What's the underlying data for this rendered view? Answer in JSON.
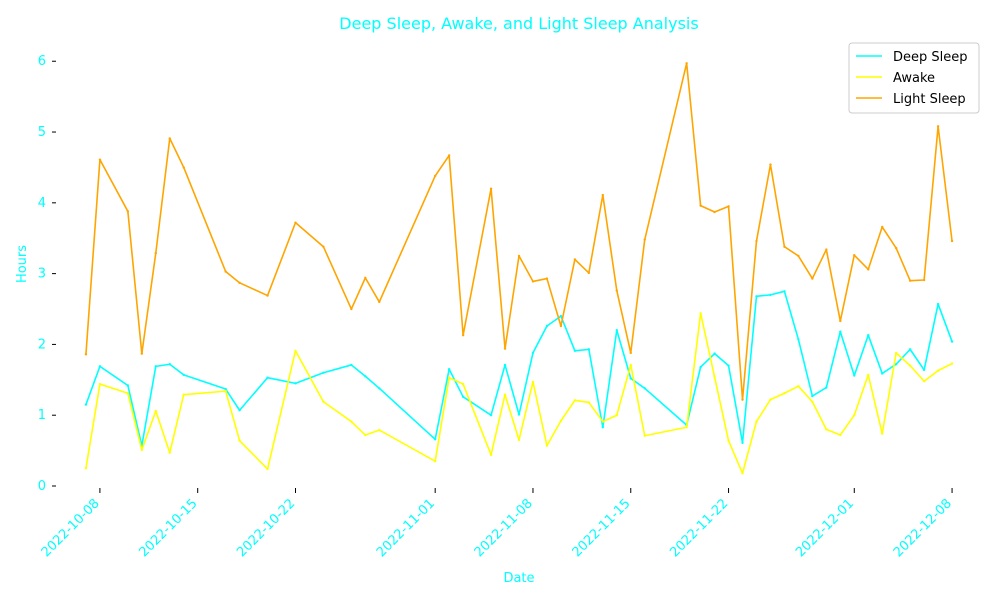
{
  "chart_data": {
    "type": "line",
    "title": "Deep Sleep, Awake, and Light Sleep Analysis",
    "xlabel": "Date",
    "ylabel": "Hours",
    "ylim": [
      0,
      6.3
    ],
    "yticks": [
      0,
      1,
      2,
      3,
      4,
      5,
      6
    ],
    "xticks": [
      "2022-10-08",
      "2022-10-15",
      "2022-10-22",
      "2022-11-01",
      "2022-11-08",
      "2022-11-15",
      "2022-11-22",
      "2022-12-01",
      "2022-12-08"
    ],
    "xlim": [
      "2022-10-05",
      "2022-12-10"
    ],
    "grid": false,
    "legend_position": "top-right",
    "x": [
      "2022-10-07",
      "2022-10-08",
      "2022-10-10",
      "2022-10-11",
      "2022-10-12",
      "2022-10-13",
      "2022-10-14",
      "2022-10-17",
      "2022-10-18",
      "2022-10-20",
      "2022-10-22",
      "2022-10-24",
      "2022-10-26",
      "2022-10-27",
      "2022-10-28",
      "2022-11-01",
      "2022-11-02",
      "2022-11-03",
      "2022-11-05",
      "2022-11-06",
      "2022-11-07",
      "2022-11-08",
      "2022-11-09",
      "2022-11-10",
      "2022-11-11",
      "2022-11-12",
      "2022-11-13",
      "2022-11-14",
      "2022-11-15",
      "2022-11-16",
      "2022-11-19",
      "2022-11-20",
      "2022-11-21",
      "2022-11-22",
      "2022-11-23",
      "2022-11-24",
      "2022-11-25",
      "2022-11-26",
      "2022-11-27",
      "2022-11-28",
      "2022-11-29",
      "2022-11-30",
      "2022-12-01",
      "2022-12-02",
      "2022-12-03",
      "2022-12-04",
      "2022-12-05",
      "2022-12-06",
      "2022-12-07",
      "2022-12-08"
    ],
    "series": [
      {
        "name": "Deep Sleep",
        "color": "#00ffff",
        "values": [
          1.15,
          1.69,
          1.42,
          0.57,
          1.69,
          1.72,
          1.57,
          1.37,
          1.07,
          1.53,
          1.45,
          1.6,
          1.71,
          1.55,
          1.38,
          0.66,
          1.65,
          1.26,
          1.0,
          1.71,
          1.01,
          1.88,
          2.26,
          2.4,
          1.91,
          1.93,
          0.83,
          2.2,
          1.52,
          1.38,
          0.86,
          1.68,
          1.87,
          1.7,
          0.61,
          2.68,
          2.7,
          2.75,
          2.07,
          1.27,
          1.39,
          2.18,
          1.56,
          2.13,
          1.59,
          1.72,
          1.93,
          1.64,
          2.57,
          2.04
        ]
      },
      {
        "name": "Awake",
        "color": "#ffff00",
        "values": [
          0.25,
          1.44,
          1.31,
          0.51,
          1.06,
          0.47,
          1.29,
          1.34,
          0.64,
          0.24,
          1.91,
          1.19,
          0.91,
          0.72,
          0.79,
          0.35,
          1.53,
          1.44,
          0.44,
          1.29,
          0.65,
          1.47,
          0.57,
          0.92,
          1.21,
          1.18,
          0.91,
          1.0,
          1.71,
          0.71,
          0.83,
          2.44,
          1.54,
          0.64,
          0.18,
          0.91,
          1.22,
          1.31,
          1.41,
          1.19,
          0.8,
          0.72,
          1.0,
          1.57,
          0.74,
          1.88,
          1.7,
          1.48,
          1.63,
          1.73
        ]
      },
      {
        "name": "Light Sleep",
        "color": "#ffa500",
        "values": [
          1.86,
          4.61,
          3.88,
          1.87,
          3.29,
          4.91,
          4.5,
          3.03,
          2.87,
          2.69,
          3.72,
          3.38,
          2.5,
          2.94,
          2.6,
          4.38,
          4.67,
          2.13,
          4.2,
          1.94,
          3.25,
          2.89,
          2.93,
          2.26,
          3.2,
          3.01,
          4.11,
          2.76,
          1.88,
          3.48,
          5.97,
          3.96,
          3.87,
          3.95,
          1.22,
          3.46,
          4.54,
          3.38,
          3.25,
          2.93,
          3.34,
          2.33,
          3.26,
          3.06,
          3.66,
          3.36,
          2.9,
          2.91,
          5.08,
          3.46
        ]
      }
    ]
  }
}
